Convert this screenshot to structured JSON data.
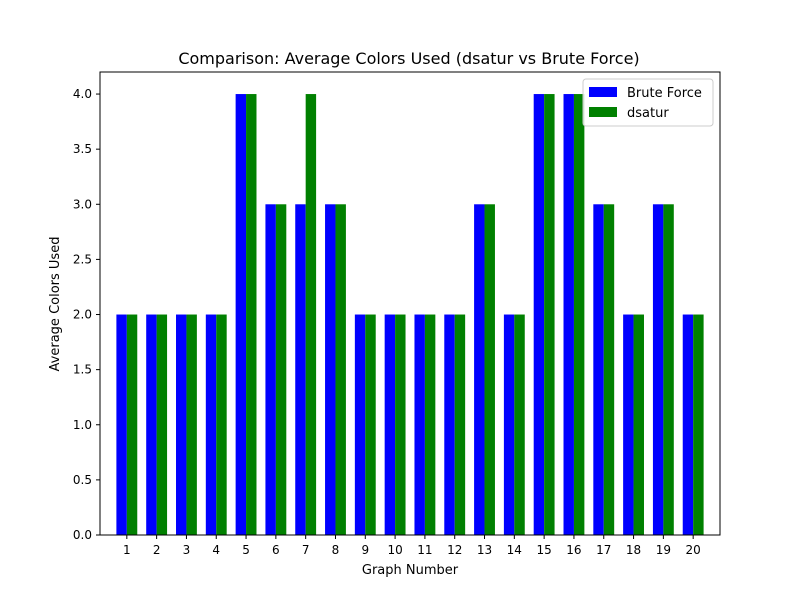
{
  "chart_data": {
    "type": "bar",
    "title": "Comparison: Average Colors Used (dsatur vs Brute Force)",
    "xlabel": "Graph Number",
    "ylabel": "Average Colors Used",
    "categories": [
      "1",
      "2",
      "3",
      "4",
      "5",
      "6",
      "7",
      "8",
      "9",
      "10",
      "11",
      "12",
      "13",
      "14",
      "15",
      "16",
      "17",
      "18",
      "19",
      "20"
    ],
    "series": [
      {
        "name": "Brute Force",
        "color": "#0000ff",
        "values": [
          2,
          2,
          2,
          2,
          4,
          3,
          3,
          3,
          2,
          2,
          2,
          2,
          3,
          2,
          4,
          4,
          3,
          2,
          3,
          2
        ]
      },
      {
        "name": "dsatur",
        "color": "#008000",
        "values": [
          2,
          2,
          2,
          2,
          4,
          3,
          4,
          3,
          2,
          2,
          2,
          2,
          3,
          2,
          4,
          4,
          3,
          2,
          3,
          2
        ]
      }
    ],
    "ylim": [
      0,
      4.2
    ],
    "yticks": [
      "0.0",
      "0.5",
      "1.0",
      "1.5",
      "2.0",
      "2.5",
      "3.0",
      "3.5",
      "4.0"
    ],
    "grid": false,
    "legend_position": "top-right"
  }
}
